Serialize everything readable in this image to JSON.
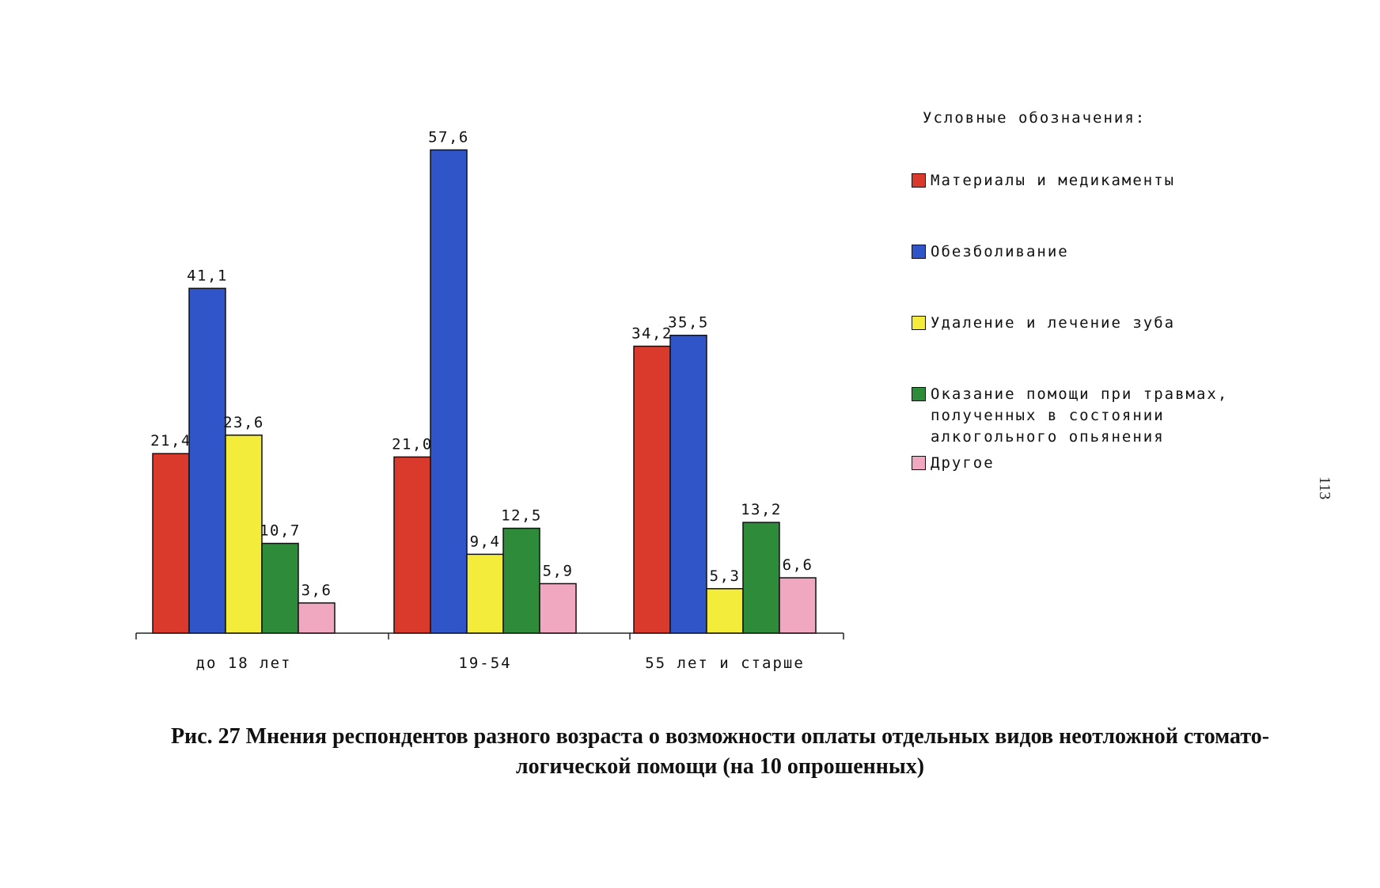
{
  "page": {
    "number": "113",
    "caption_line1": "Рис. 27 Мнения респондентов разного возраста о возможности оплаты отдельных видов неотложной стомато-",
    "caption_line2": "логической помощи (на 10 опрошенных)"
  },
  "legend": {
    "title": "Условные обозначения:",
    "items": [
      {
        "label": "Материалы и медикаменты",
        "color": "#d93a2b"
      },
      {
        "label": "Обезболивание",
        "color": "#2f55c8"
      },
      {
        "label": "Удаление и лечение зуба",
        "color": "#f4ec3a"
      },
      {
        "label": "Оказание помощи при травмах, полученных в состоянии алкогольного опьянения",
        "color": "#2e8b3a"
      },
      {
        "label": "Другое",
        "color": "#f0a8c0"
      }
    ]
  },
  "chart_data": {
    "type": "bar",
    "title": "",
    "xlabel": "",
    "ylabel": "",
    "ylim": [
      0,
      60
    ],
    "grid": false,
    "legend_position": "right",
    "categories": [
      "до 18 лет",
      "19-54",
      "55 лет и старше"
    ],
    "series": [
      {
        "name": "Материалы и медикаменты",
        "color": "#d93a2b",
        "values": [
          21.4,
          21.0,
          34.2
        ],
        "labels": [
          "21,4",
          "21,0",
          "34,2"
        ]
      },
      {
        "name": "Обезболивание",
        "color": "#2f55c8",
        "values": [
          41.1,
          57.6,
          35.5
        ],
        "labels": [
          "41,1",
          "57,6",
          "35,5"
        ]
      },
      {
        "name": "Удаление и лечение зуба",
        "color": "#f4ec3a",
        "values": [
          23.6,
          9.4,
          5.3
        ],
        "labels": [
          "23,6",
          "9,4",
          "5,3"
        ]
      },
      {
        "name": "Оказание помощи при травмах, полученных в состоянии алкогольного опьянения",
        "color": "#2e8b3a",
        "values": [
          10.7,
          12.5,
          13.2
        ],
        "labels": [
          "10,7",
          "12,5",
          "13,2"
        ]
      },
      {
        "name": "Другое",
        "color": "#f0a8c0",
        "values": [
          3.6,
          5.9,
          6.6
        ],
        "labels": [
          "3,6",
          "5,9",
          "6,6"
        ]
      }
    ]
  }
}
